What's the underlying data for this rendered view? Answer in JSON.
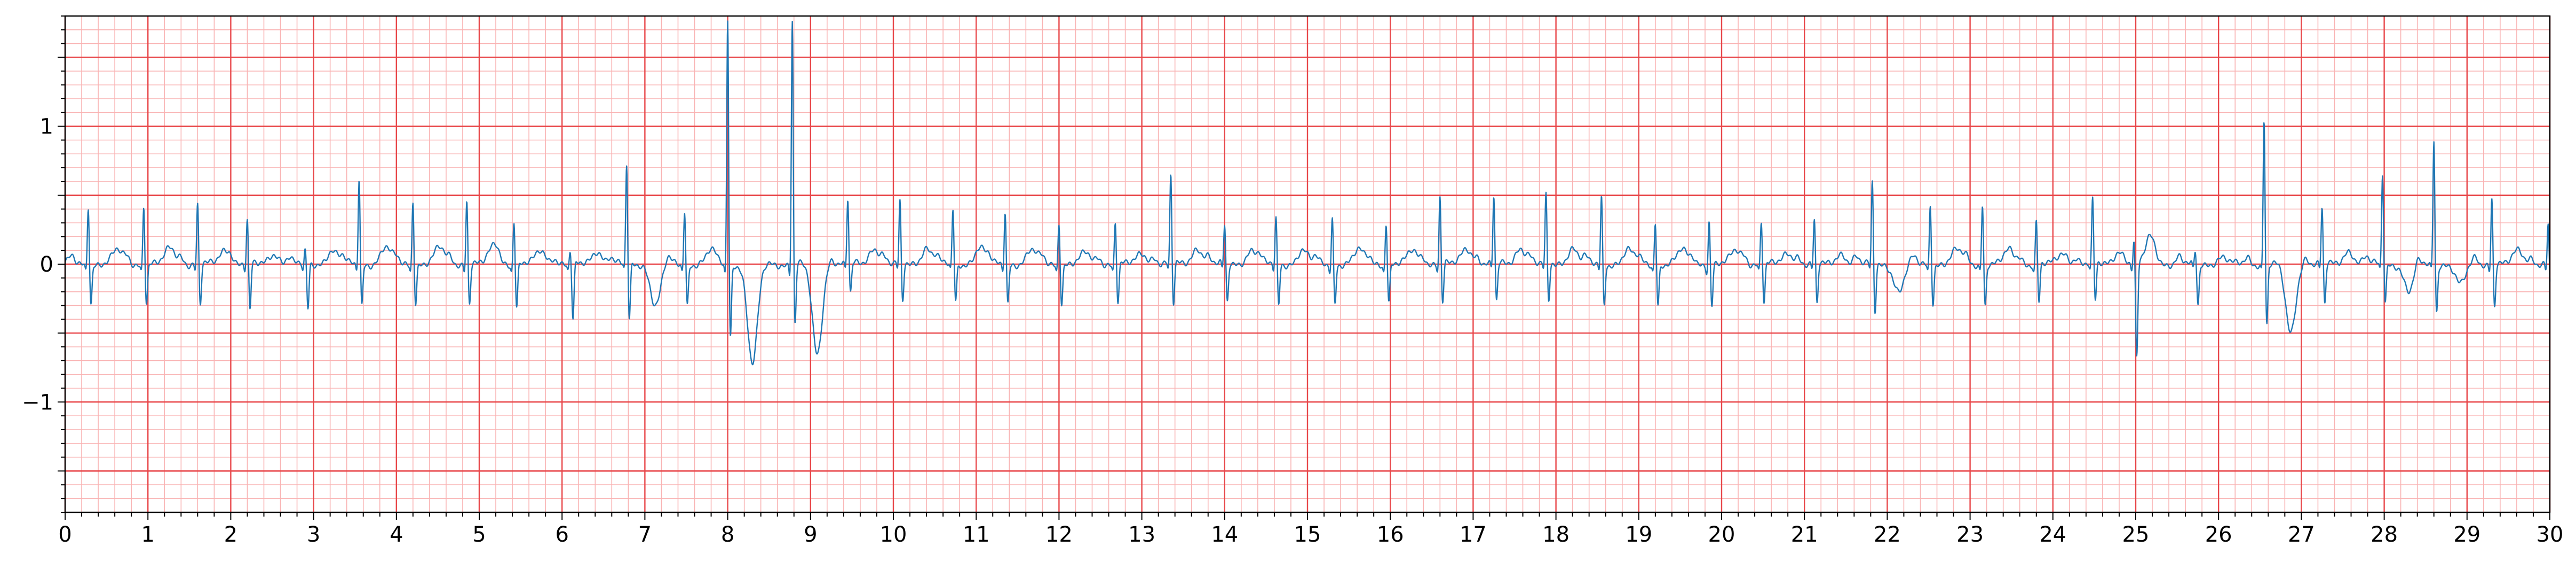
{
  "chart_data": {
    "type": "line",
    "title": "",
    "xlabel": "",
    "ylabel": "",
    "xlim": [
      0,
      30
    ],
    "ylim": [
      -1.8,
      1.8
    ],
    "x_ticks": [
      0,
      1,
      2,
      3,
      4,
      5,
      6,
      7,
      8,
      9,
      10,
      11,
      12,
      13,
      14,
      15,
      16,
      17,
      18,
      19,
      20,
      21,
      22,
      23,
      24,
      25,
      26,
      27,
      28,
      29,
      30
    ],
    "y_ticks": [
      -1,
      0,
      1
    ],
    "x_tick_labels": [
      "0",
      "1",
      "2",
      "3",
      "4",
      "5",
      "6",
      "7",
      "8",
      "9",
      "10",
      "11",
      "12",
      "13",
      "14",
      "15",
      "16",
      "17",
      "18",
      "19",
      "20",
      "21",
      "22",
      "23",
      "24",
      "25",
      "26",
      "27",
      "28",
      "29",
      "30"
    ],
    "y_tick_labels": [
      "−1",
      "0",
      "1"
    ],
    "grid": true,
    "grid_major_x": 1,
    "grid_minor_x": 0.2,
    "grid_major_y": 0.5,
    "grid_minor_y": 0.1,
    "colors": {
      "signal": "#1f77b4",
      "major_grid": "#e8474a",
      "minor_grid": "#f9b3b3",
      "axes": "#000000"
    },
    "beats": [
      {
        "t": 0.28,
        "r": 0.44,
        "q": -0.05,
        "s": -0.28,
        "p": 0.05,
        "tw": 0.1,
        "td": 0.35
      },
      {
        "t": 0.95,
        "r": 0.44,
        "q": -0.05,
        "s": -0.28,
        "p": 0.05,
        "tw": 0.12,
        "td": 0.32
      },
      {
        "t": 1.6,
        "r": 0.44,
        "q": -0.05,
        "s": -0.3,
        "p": 0.05,
        "tw": 0.1,
        "td": 0.32
      },
      {
        "t": 2.2,
        "r": 0.33,
        "q": -0.05,
        "s": -0.35,
        "p": 0.05,
        "tw": 0.08,
        "td": 0.32
      },
      {
        "t": 2.9,
        "r": 0.1,
        "q": -0.05,
        "s": -0.33,
        "p": 0.05,
        "tw": 0.1,
        "td": 0.32
      },
      {
        "t": 3.55,
        "r": 0.64,
        "q": -0.05,
        "s": -0.3,
        "p": 0.05,
        "tw": 0.12,
        "td": 0.32
      },
      {
        "t": 4.2,
        "r": 0.48,
        "q": -0.05,
        "s": -0.28,
        "p": 0.05,
        "tw": 0.12,
        "td": 0.32
      },
      {
        "t": 4.85,
        "r": 0.48,
        "q": -0.05,
        "s": -0.28,
        "p": 0.05,
        "tw": 0.12,
        "td": 0.32
      },
      {
        "t": 5.42,
        "r": 0.33,
        "q": -0.05,
        "s": -0.32,
        "p": 0.05,
        "tw": 0.1,
        "td": 0.32
      },
      {
        "t": 6.1,
        "r": 0.1,
        "q": -0.05,
        "s": -0.42,
        "p": 0.05,
        "tw": 0.1,
        "td": 0.32
      },
      {
        "t": 6.78,
        "r": 0.73,
        "q": -0.05,
        "s": -0.42,
        "p": 0.05,
        "tw": -0.3,
        "td": 0.35
      },
      {
        "t": 7.48,
        "r": 0.4,
        "q": -0.05,
        "s": -0.3,
        "p": 0.05,
        "tw": 0.1,
        "td": 0.32
      },
      {
        "t": 8.0,
        "r": 1.8,
        "q": -0.1,
        "s": -0.55,
        "p": 0.0,
        "tw": -0.72,
        "td": 0.3
      },
      {
        "t": 8.78,
        "r": 1.8,
        "q": -0.1,
        "s": -0.45,
        "p": 0.0,
        "tw": -0.65,
        "td": 0.3
      },
      {
        "t": 9.45,
        "r": 0.48,
        "q": -0.05,
        "s": -0.22,
        "p": 0.05,
        "tw": 0.12,
        "td": 0.32
      },
      {
        "t": 10.08,
        "r": 0.45,
        "q": -0.05,
        "s": -0.28,
        "p": 0.05,
        "tw": 0.12,
        "td": 0.32
      },
      {
        "t": 10.72,
        "r": 0.4,
        "q": -0.05,
        "s": -0.28,
        "p": 0.05,
        "tw": 0.12,
        "td": 0.32
      },
      {
        "t": 11.35,
        "r": 0.4,
        "q": -0.05,
        "s": -0.28,
        "p": 0.05,
        "tw": 0.1,
        "td": 0.32
      },
      {
        "t": 12.0,
        "r": 0.32,
        "q": -0.05,
        "s": -0.28,
        "p": 0.05,
        "tw": 0.08,
        "td": 0.32
      },
      {
        "t": 12.68,
        "r": 0.32,
        "q": -0.05,
        "s": -0.28,
        "p": 0.05,
        "tw": 0.08,
        "td": 0.32
      },
      {
        "t": 13.35,
        "r": 0.65,
        "q": -0.05,
        "s": -0.3,
        "p": 0.05,
        "tw": 0.12,
        "td": 0.32
      },
      {
        "t": 14.0,
        "r": 0.28,
        "q": -0.05,
        "s": -0.28,
        "p": 0.05,
        "tw": 0.1,
        "td": 0.32
      },
      {
        "t": 14.62,
        "r": 0.34,
        "q": -0.05,
        "s": -0.3,
        "p": 0.05,
        "tw": 0.1,
        "td": 0.32
      },
      {
        "t": 15.3,
        "r": 0.35,
        "q": -0.05,
        "s": -0.28,
        "p": 0.05,
        "tw": 0.1,
        "td": 0.32
      },
      {
        "t": 15.95,
        "r": 0.32,
        "q": -0.05,
        "s": -0.28,
        "p": 0.05,
        "tw": 0.1,
        "td": 0.32
      },
      {
        "t": 16.6,
        "r": 0.5,
        "q": -0.05,
        "s": -0.28,
        "p": 0.05,
        "tw": 0.12,
        "td": 0.32
      },
      {
        "t": 17.25,
        "r": 0.5,
        "q": -0.05,
        "s": -0.28,
        "p": 0.05,
        "tw": 0.12,
        "td": 0.32
      },
      {
        "t": 17.88,
        "r": 0.5,
        "q": -0.05,
        "s": -0.28,
        "p": 0.05,
        "tw": 0.12,
        "td": 0.32
      },
      {
        "t": 18.55,
        "r": 0.5,
        "q": -0.05,
        "s": -0.3,
        "p": 0.05,
        "tw": 0.1,
        "td": 0.32
      },
      {
        "t": 19.2,
        "r": 0.32,
        "q": -0.05,
        "s": -0.3,
        "p": 0.05,
        "tw": 0.1,
        "td": 0.32
      },
      {
        "t": 19.85,
        "r": 0.33,
        "q": -0.05,
        "s": -0.3,
        "p": 0.05,
        "tw": 0.1,
        "td": 0.32
      },
      {
        "t": 20.48,
        "r": 0.32,
        "q": -0.05,
        "s": -0.28,
        "p": 0.05,
        "tw": 0.08,
        "td": 0.32
      },
      {
        "t": 21.12,
        "r": 0.32,
        "q": -0.05,
        "s": -0.3,
        "p": 0.05,
        "tw": 0.08,
        "td": 0.32
      },
      {
        "t": 21.82,
        "r": 0.6,
        "q": -0.05,
        "s": -0.35,
        "p": 0.05,
        "tw": -0.2,
        "td": 0.32
      },
      {
        "t": 22.52,
        "r": 0.45,
        "q": -0.05,
        "s": -0.28,
        "p": 0.05,
        "tw": 0.1,
        "td": 0.32
      },
      {
        "t": 23.15,
        "r": 0.45,
        "q": -0.05,
        "s": -0.3,
        "p": 0.05,
        "tw": 0.1,
        "td": 0.32
      },
      {
        "t": 23.8,
        "r": 0.32,
        "q": -0.05,
        "s": -0.28,
        "p": 0.05,
        "tw": 0.08,
        "td": 0.32
      },
      {
        "t": 24.48,
        "r": 0.47,
        "q": -0.05,
        "s": -0.28,
        "p": 0.05,
        "tw": 0.1,
        "td": 0.32
      },
      {
        "t": 24.98,
        "r": 0.18,
        "q": -0.05,
        "s": -0.7,
        "p": 0.0,
        "tw": 0.2,
        "td": 0.2
      },
      {
        "t": 25.72,
        "r": 0.1,
        "q": -0.05,
        "s": -0.3,
        "p": 0.05,
        "tw": 0.05,
        "td": 0.32
      },
      {
        "t": 26.55,
        "r": 1.07,
        "q": -0.05,
        "s": -0.45,
        "p": 0.05,
        "tw": -0.5,
        "td": 0.32
      },
      {
        "t": 27.25,
        "r": 0.41,
        "q": -0.05,
        "s": -0.3,
        "p": 0.05,
        "tw": 0.1,
        "td": 0.32
      },
      {
        "t": 27.98,
        "r": 0.67,
        "q": -0.05,
        "s": -0.28,
        "p": 0.05,
        "tw": -0.2,
        "td": 0.32
      },
      {
        "t": 28.6,
        "r": 0.92,
        "q": -0.05,
        "s": -0.35,
        "p": 0.05,
        "tw": -0.15,
        "td": 0.32
      },
      {
        "t": 29.3,
        "r": 0.5,
        "q": -0.05,
        "s": -0.3,
        "p": 0.05,
        "tw": 0.1,
        "td": 0.32
      },
      {
        "t": 29.98,
        "r": 0.3,
        "q": -0.05,
        "s": -0.3,
        "p": 0.05,
        "tw": 0.05,
        "td": 0.32
      }
    ]
  }
}
